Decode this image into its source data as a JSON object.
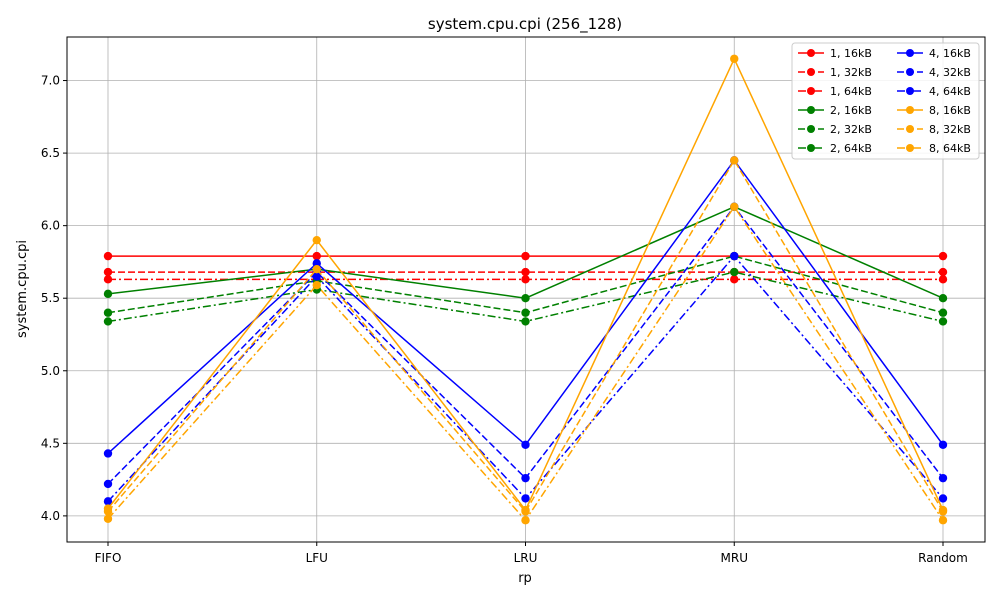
{
  "chart_data": {
    "type": "line",
    "title": "system.cpu.cpi (256_128)",
    "xlabel": "rp",
    "ylabel": "system.cpu.cpi",
    "categories": [
      "FIFO",
      "LFU",
      "LRU",
      "MRU",
      "Random"
    ],
    "ylim": [
      3.82,
      7.3
    ],
    "yticks": [
      "4.0",
      "4.5",
      "5.0",
      "5.5",
      "6.0",
      "6.5",
      "7.0"
    ],
    "grid": true,
    "legend_position": "top-right",
    "legend_columns": 2,
    "series": [
      {
        "name": "1, 16kB",
        "color": "#ff0000",
        "dash": "solid",
        "values": [
          5.79,
          5.79,
          5.79,
          5.79,
          5.79
        ]
      },
      {
        "name": "1, 32kB",
        "color": "#ff0000",
        "dash": "dashed",
        "values": [
          5.68,
          5.68,
          5.68,
          5.68,
          5.68
        ]
      },
      {
        "name": "1, 64kB",
        "color": "#ff0000",
        "dash": "dashdot",
        "values": [
          5.63,
          5.63,
          5.63,
          5.63,
          5.63
        ]
      },
      {
        "name": "2, 16kB",
        "color": "#008000",
        "dash": "solid",
        "values": [
          5.53,
          5.7,
          5.5,
          6.13,
          5.5
        ]
      },
      {
        "name": "2, 32kB",
        "color": "#008000",
        "dash": "dashed",
        "values": [
          5.4,
          5.62,
          5.4,
          5.79,
          5.4
        ]
      },
      {
        "name": "2, 64kB",
        "color": "#008000",
        "dash": "dashdot",
        "values": [
          5.34,
          5.56,
          5.34,
          5.68,
          5.34
        ]
      },
      {
        "name": "4, 16kB",
        "color": "#0000ff",
        "dash": "solid",
        "values": [
          4.43,
          5.74,
          4.49,
          6.45,
          4.49
        ]
      },
      {
        "name": "4, 32kB",
        "color": "#0000ff",
        "dash": "dashed",
        "values": [
          4.22,
          5.68,
          4.26,
          6.13,
          4.26
        ]
      },
      {
        "name": "4, 64kB",
        "color": "#0000ff",
        "dash": "dashdot",
        "values": [
          4.1,
          5.65,
          4.12,
          5.79,
          4.12
        ]
      },
      {
        "name": "8, 16kB",
        "color": "#ffa500",
        "dash": "solid",
        "values": [
          4.05,
          5.9,
          4.04,
          7.15,
          4.04
        ]
      },
      {
        "name": "8, 32kB",
        "color": "#ffa500",
        "dash": "dashed",
        "values": [
          4.03,
          5.7,
          4.03,
          6.45,
          4.03
        ]
      },
      {
        "name": "8, 64kB",
        "color": "#ffa500",
        "dash": "dashdot",
        "values": [
          3.98,
          5.59,
          3.97,
          6.13,
          3.97
        ]
      }
    ]
  }
}
